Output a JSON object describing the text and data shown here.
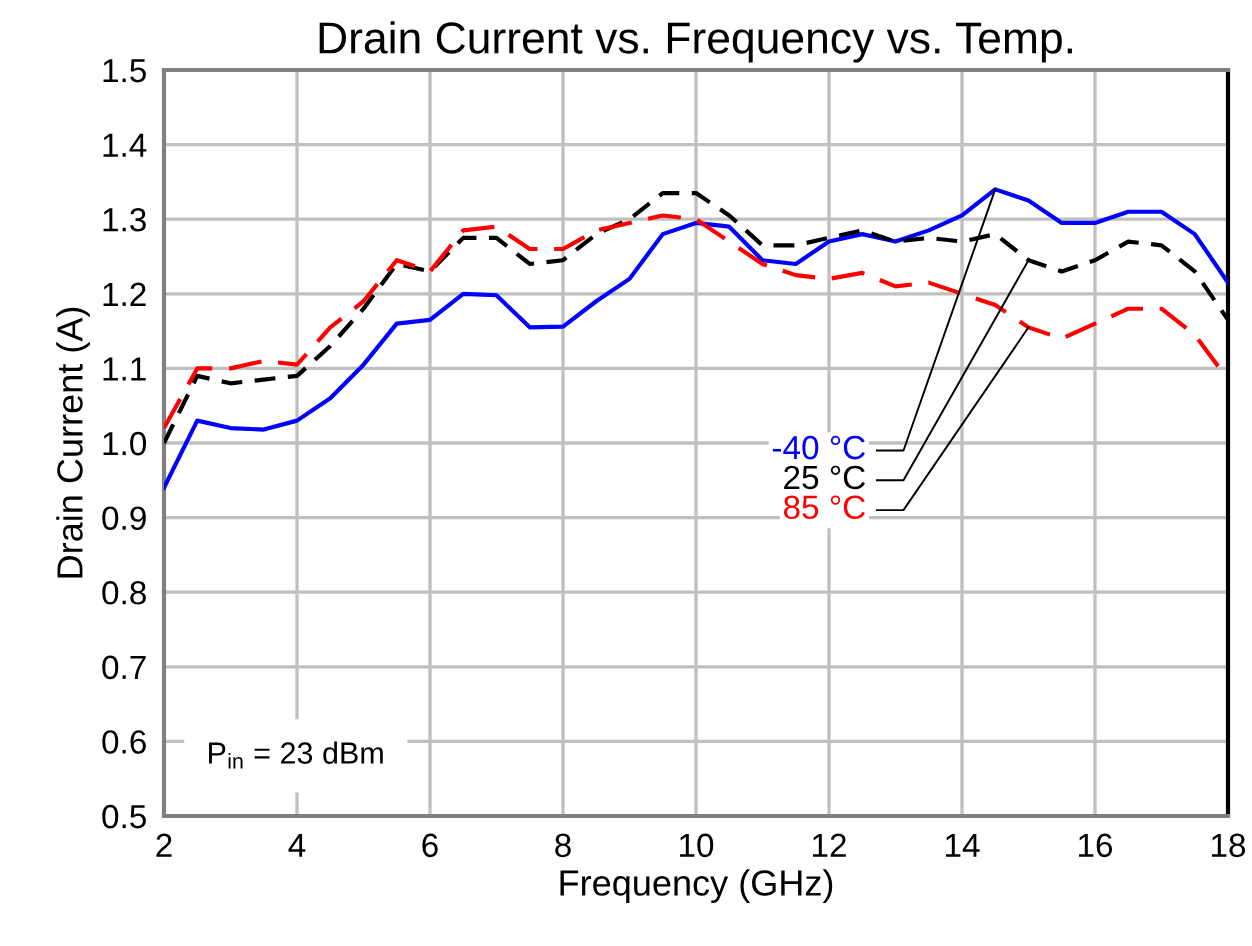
{
  "chart_data": {
    "type": "line",
    "title": "Drain Current vs. Frequency vs. Temp.",
    "xlabel": "Frequency (GHz)",
    "ylabel": "Drain Current (A)",
    "x": [
      2,
      2.5,
      3,
      3.5,
      4,
      4.5,
      5,
      5.5,
      6,
      6.5,
      7,
      7.5,
      8,
      8.5,
      9,
      9.5,
      10,
      10.5,
      11,
      11.5,
      12,
      12.5,
      13,
      13.5,
      14,
      14.5,
      15,
      15.5,
      16,
      16.5,
      17,
      17.5,
      18
    ],
    "series": [
      {
        "name": "-40 °C",
        "color": "#0000ff",
        "line_style": "solid",
        "values": [
          0.94,
          1.03,
          1.02,
          1.018,
          1.03,
          1.06,
          1.105,
          1.16,
          1.165,
          1.2,
          1.198,
          1.155,
          1.156,
          1.19,
          1.22,
          1.28,
          1.295,
          1.29,
          1.245,
          1.24,
          1.27,
          1.28,
          1.27,
          1.285,
          1.305,
          1.34,
          1.325,
          1.295,
          1.295,
          1.31,
          1.31,
          1.28,
          1.215
        ]
      },
      {
        "name": "25 °C",
        "color": "#000000",
        "line_style": "dashed",
        "values": [
          1.0,
          1.09,
          1.08,
          1.085,
          1.09,
          1.13,
          1.18,
          1.24,
          1.23,
          1.275,
          1.275,
          1.24,
          1.245,
          1.28,
          1.3,
          1.335,
          1.335,
          1.305,
          1.265,
          1.265,
          1.275,
          1.285,
          1.27,
          1.275,
          1.27,
          1.28,
          1.245,
          1.23,
          1.245,
          1.27,
          1.265,
          1.23,
          1.165
        ]
      },
      {
        "name": "85 °C",
        "color": "#ff0000",
        "line_style": "dashed",
        "values": [
          1.02,
          1.1,
          1.1,
          1.11,
          1.105,
          1.155,
          1.19,
          1.245,
          1.23,
          1.285,
          1.29,
          1.26,
          1.26,
          1.285,
          1.295,
          1.305,
          1.3,
          1.27,
          1.24,
          1.225,
          1.22,
          1.228,
          1.21,
          1.215,
          1.2,
          1.185,
          1.155,
          1.14,
          1.16,
          1.18,
          1.18,
          1.145,
          1.085
        ]
      }
    ],
    "xlim": [
      2,
      18
    ],
    "xticks": [
      2,
      4,
      6,
      8,
      10,
      12,
      14,
      16,
      18
    ],
    "ylim": [
      0.5,
      1.5
    ],
    "yticks": [
      {
        "value": 0.5,
        "label": "0.5"
      },
      {
        "value": 0.6,
        "label": "0.6"
      },
      {
        "value": 0.7,
        "label": "0.7"
      },
      {
        "value": 0.8,
        "label": "0.8"
      },
      {
        "value": 0.9,
        "label": "0.9"
      },
      {
        "value": 1.0,
        "label": "1.0"
      },
      {
        "value": 1.1,
        "label": "1.1"
      },
      {
        "value": 1.2,
        "label": "1.2"
      },
      {
        "value": 1.3,
        "label": "1.3"
      },
      {
        "value": 1.4,
        "label": "1.4"
      },
      {
        "value": 1.5,
        "label": "1.5"
      }
    ],
    "grid": true,
    "legend": false,
    "marker": "none",
    "annotations": [
      "P$_{in}$ = 23 dBm"
    ]
  }
}
